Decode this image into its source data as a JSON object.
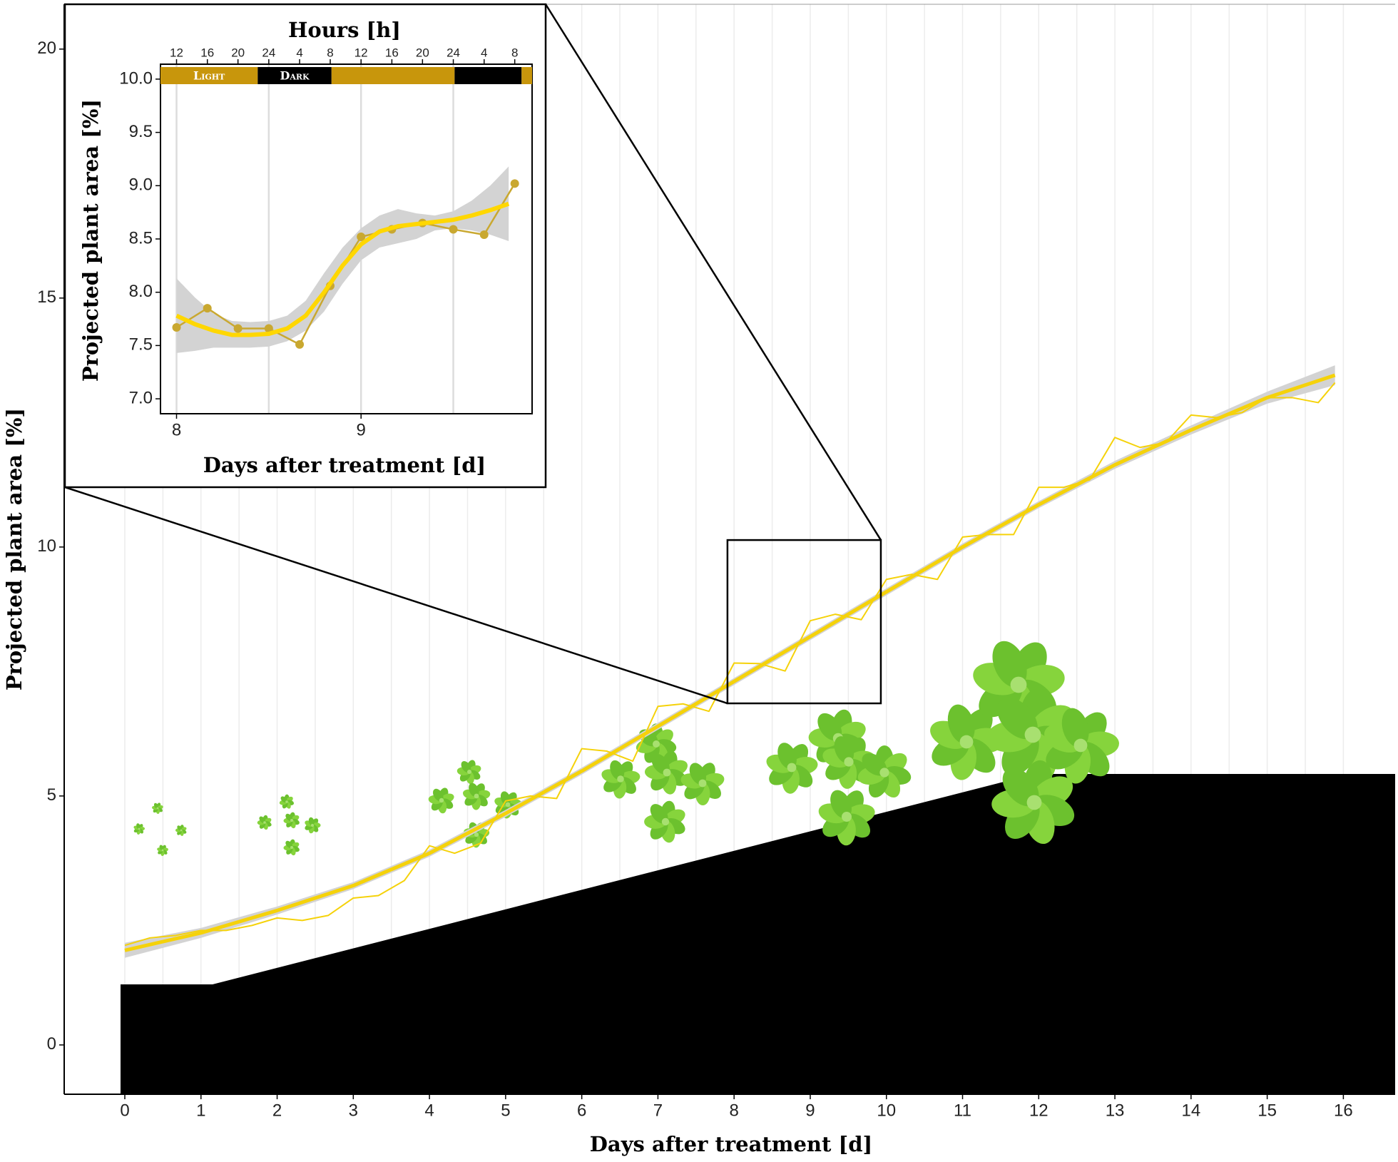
{
  "chart_data": [
    {
      "type": "line",
      "xlabel": "Days after treatment [d]",
      "ylabel": "Projected plant area  [%]",
      "xlim": [
        -0.796,
        16.68
      ],
      "ylim": [
        -0.99,
        20.9
      ],
      "xticks": [
        0,
        1,
        2,
        3,
        4,
        5,
        6,
        7,
        8,
        9,
        10,
        11,
        12,
        13,
        14,
        15,
        16
      ],
      "yticks": [
        0,
        5,
        10,
        15,
        20
      ],
      "xgrid": [
        0,
        0.5,
        1,
        1.5,
        2,
        2.5,
        3,
        3.5,
        4,
        4.5,
        5,
        5.5,
        6,
        6.5,
        7,
        7.5,
        8,
        8.5,
        9,
        9.5,
        10,
        10.5,
        11,
        11.5,
        12,
        12.5,
        13,
        13.5,
        14,
        14.5,
        15,
        15.5,
        16
      ],
      "band": {
        "color": "#d3d3d3",
        "x": [
          0,
          1,
          2,
          3,
          4,
          5,
          6,
          7,
          8,
          9,
          10,
          11,
          12,
          13,
          14,
          15,
          15.89
        ],
        "lower": [
          1.75,
          2.15,
          2.62,
          3.13,
          3.78,
          4.58,
          5.43,
          6.33,
          7.23,
          8.13,
          9.03,
          9.93,
          10.78,
          11.57,
          12.26,
          12.88,
          13.25
        ],
        "upper": [
          2.05,
          2.35,
          2.78,
          3.27,
          3.92,
          4.72,
          5.57,
          6.47,
          7.37,
          8.27,
          9.17,
          10.07,
          10.92,
          11.73,
          12.44,
          13.12,
          13.65
        ]
      },
      "series": [
        {
          "color": "#f5d20a",
          "width": 2,
          "x": [
            0,
            0.33,
            0.67,
            1,
            1.33,
            1.67,
            2,
            2.33,
            2.67,
            3,
            3.33,
            3.67,
            4,
            4.33,
            4.67,
            5,
            5.33,
            5.67,
            6,
            6.33,
            6.67,
            7,
            7.33,
            7.67,
            8,
            8.33,
            8.67,
            9,
            9.33,
            9.67,
            10,
            10.33,
            10.67,
            11,
            11.33,
            11.67,
            12,
            12.33,
            12.67,
            13,
            13.33,
            13.67,
            14,
            14.33,
            14.67,
            15,
            15.33,
            15.67,
            15.89
          ],
          "values": [
            2.0,
            2.15,
            2.2,
            2.3,
            2.3,
            2.4,
            2.55,
            2.5,
            2.6,
            2.95,
            3.0,
            3.3,
            4.0,
            3.85,
            4.05,
            4.9,
            5.0,
            4.95,
            5.95,
            5.9,
            5.7,
            6.8,
            6.85,
            6.7,
            7.67,
            7.66,
            7.51,
            8.52,
            8.65,
            8.54,
            9.35,
            9.45,
            9.35,
            10.2,
            10.25,
            10.25,
            11.2,
            11.2,
            11.35,
            12.2,
            12.0,
            12.1,
            12.65,
            12.6,
            12.7,
            13.0,
            13.0,
            12.9,
            13.3
          ]
        },
        {
          "color": "#f5d20a",
          "width": 5,
          "x": [
            0,
            1,
            2,
            3,
            4,
            5,
            6,
            7,
            8,
            9,
            10,
            11,
            12,
            13,
            14,
            15,
            15.89
          ],
          "values": [
            1.9,
            2.25,
            2.7,
            3.2,
            3.85,
            4.65,
            5.5,
            6.4,
            7.3,
            8.2,
            9.1,
            10.0,
            10.85,
            11.65,
            12.35,
            13.0,
            13.45
          ]
        }
      ]
    },
    {
      "type": "line",
      "x2label": "Hours [h]",
      "xlabel": "Days after treatment [d]",
      "ylabel": "Projected plant area  [%]",
      "xlim": [
        7.913,
        9.927
      ],
      "ylim": [
        6.86,
        10.14
      ],
      "xticks": [
        8,
        9
      ],
      "yticks": [
        {
          "value": 7,
          "label": "7.0"
        },
        7.5,
        {
          "value": 8,
          "label": "8.0"
        },
        8.5,
        {
          "value": 9,
          "label": "9.0"
        },
        9.5,
        {
          "value": 10,
          "label": "10.0"
        }
      ],
      "x2ticks": [
        {
          "value": 8,
          "label": "12"
        },
        {
          "value": 8.167,
          "label": "16"
        },
        {
          "value": 8.333,
          "label": "20"
        },
        {
          "value": 8.5,
          "label": "24"
        },
        {
          "value": 8.667,
          "label": "4"
        },
        {
          "value": 8.833,
          "label": "8"
        },
        {
          "value": 9,
          "label": "12"
        },
        {
          "value": 9.167,
          "label": "16"
        },
        {
          "value": 9.333,
          "label": "20"
        },
        {
          "value": 9.5,
          "label": "24"
        },
        {
          "value": 9.667,
          "label": "4"
        },
        {
          "value": 9.833,
          "label": "8"
        }
      ],
      "xgrid": [
        8,
        8.5,
        9,
        9.5
      ],
      "periods": [
        {
          "label": "Light",
          "color": "#c8960c",
          "start": 7.913,
          "end": 8.44
        },
        {
          "label": "Dark",
          "color": "#000000",
          "start": 8.44,
          "end": 8.84
        },
        {
          "label": null,
          "color": "#c8960c",
          "start": 8.84,
          "end": 9.507
        },
        {
          "label": null,
          "color": "#000000",
          "start": 9.507,
          "end": 9.87
        },
        {
          "label": null,
          "color": "#c8960c",
          "start": 9.87,
          "end": 9.927
        }
      ],
      "band": {
        "color": "#d3d3d3",
        "x": [
          8,
          8.1,
          8.2,
          8.3,
          8.4,
          8.5,
          8.6,
          8.7,
          8.8,
          8.9,
          9,
          9.1,
          9.2,
          9.3,
          9.4,
          9.5,
          9.6,
          9.7,
          9.8
        ],
        "lower": [
          7.43,
          7.45,
          7.48,
          7.48,
          7.48,
          7.49,
          7.54,
          7.64,
          7.82,
          8.08,
          8.3,
          8.42,
          8.46,
          8.5,
          8.58,
          8.6,
          8.58,
          8.54,
          8.48
        ],
        "upper": [
          8.13,
          7.95,
          7.8,
          7.73,
          7.72,
          7.73,
          7.78,
          7.92,
          8.18,
          8.42,
          8.6,
          8.72,
          8.78,
          8.74,
          8.72,
          8.76,
          8.86,
          9.0,
          9.18
        ]
      },
      "series": [
        {
          "color": "#c9a830",
          "width": 2.5,
          "markers": true,
          "x": [
            8,
            8.167,
            8.333,
            8.5,
            8.667,
            8.833,
            9,
            9.167,
            9.333,
            9.5,
            9.667,
            9.833
          ],
          "values": [
            7.67,
            7.85,
            7.66,
            7.66,
            7.51,
            8.06,
            8.52,
            8.59,
            8.65,
            8.59,
            8.54,
            9.02
          ]
        },
        {
          "color": "#ffd700",
          "width": 6,
          "x": [
            8,
            8.1,
            8.2,
            8.3,
            8.4,
            8.5,
            8.6,
            8.7,
            8.8,
            8.9,
            9,
            9.1,
            9.2,
            9.3,
            9.4,
            9.5,
            9.6,
            9.7,
            9.8
          ],
          "values": [
            7.78,
            7.7,
            7.64,
            7.6,
            7.6,
            7.61,
            7.66,
            7.78,
            8.0,
            8.25,
            8.45,
            8.57,
            8.62,
            8.64,
            8.66,
            8.68,
            8.72,
            8.77,
            8.83
          ]
        }
      ]
    }
  ]
}
